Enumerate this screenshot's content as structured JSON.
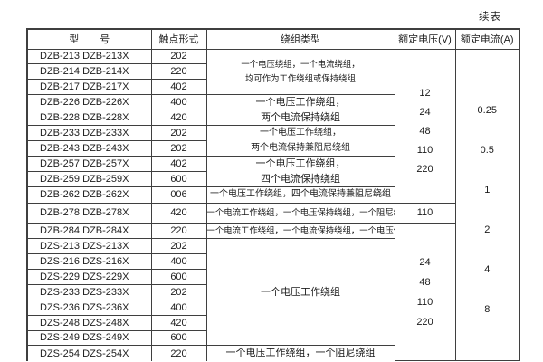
{
  "page": {
    "continued_label": "续表"
  },
  "table": {
    "headers": {
      "model": "型 号",
      "contact": "触点形式",
      "winding": "绕组类型",
      "voltage": "额定电压(V)",
      "current": "额定电流(A)"
    },
    "rows": [
      {
        "model": "DZB-213",
        "model_x": "DZB-213X",
        "contact": "202"
      },
      {
        "model": "DZB-214",
        "model_x": "DZB-214X",
        "contact": "220"
      },
      {
        "model": "DZB-217",
        "model_x": "DZB-217X",
        "contact": "402"
      },
      {
        "model": "DZB-226",
        "model_x": "DZB-226X",
        "contact": "400"
      },
      {
        "model": "DZB-228",
        "model_x": "DZB-228X",
        "contact": "420"
      },
      {
        "model": "DZB-233",
        "model_x": "DZB-233X",
        "contact": "202"
      },
      {
        "model": "DZB-243",
        "model_x": "DZB-243X",
        "contact": "202"
      },
      {
        "model": "DZB-257",
        "model_x": "DZB-257X",
        "contact": "402"
      },
      {
        "model": "DZB-259",
        "model_x": "DZB-259X",
        "contact": "600"
      },
      {
        "model": "DZB-262",
        "model_x": "DZB-262X",
        "contact": "006"
      },
      {
        "model": "DZB-278",
        "model_x": "DZB-278X",
        "contact": "420"
      },
      {
        "model": "DZB-284",
        "model_x": "DZB-284X",
        "contact": "220"
      },
      {
        "model": "DZS-213",
        "model_x": "DZS-213X",
        "contact": "202"
      },
      {
        "model": "DZS-216",
        "model_x": "DZS-216X",
        "contact": "400"
      },
      {
        "model": "DZS-229",
        "model_x": "DZS-229X",
        "contact": "600"
      },
      {
        "model": "DZS-233",
        "model_x": "DZS-233X",
        "contact": "202"
      },
      {
        "model": "DZS-236",
        "model_x": "DZS-236X",
        "contact": "400"
      },
      {
        "model": "DZS-248",
        "model_x": "DZS-248X",
        "contact": "420"
      },
      {
        "model": "DZS-249",
        "model_x": "DZS-249X",
        "contact": "600"
      },
      {
        "model": "DZS-254",
        "model_x": "DZS-254X",
        "contact": "220"
      }
    ],
    "winding_groups": [
      {
        "start": 0,
        "span": 3,
        "lines": [
          "一个电压绕组，一个电流绕组，",
          "均可作为工作绕组或保持绕组"
        ]
      },
      {
        "start": 3,
        "span": 2,
        "lines": [
          "一个电压工作绕组，",
          "两个电流保持绕组"
        ]
      },
      {
        "start": 5,
        "span": 2,
        "lines": [
          "一个电压工作绕组，",
          "两个电流保持兼阻尼绕组"
        ]
      },
      {
        "start": 7,
        "span": 2,
        "lines": [
          "一个电压工作绕组，",
          "四个电流保持绕组"
        ]
      },
      {
        "start": 9,
        "span": 1,
        "lines": [
          "一个电压工作绕组，四个电流保持兼阻尼绕组"
        ]
      },
      {
        "start": 10,
        "span": 1,
        "lines": [
          "一个电流工作绕组，一个电压保持绕组，一个阻尼绕组"
        ]
      },
      {
        "start": 11,
        "span": 1,
        "lines": [
          "一个电流工作绕组，一个电流保持绕组，一个电压保持绕组"
        ]
      },
      {
        "start": 12,
        "span": 7,
        "lines": [
          "一个电压工作绕组"
        ]
      },
      {
        "start": 19,
        "span": 1,
        "lines": [
          "一个电压工作绕组，一个阻尼绕组"
        ]
      }
    ],
    "voltage_groups": [
      {
        "start": 0,
        "span": 10,
        "values": [
          "12",
          "24",
          "48",
          "110",
          "220"
        ]
      },
      {
        "start": 10,
        "span": 1,
        "values": [
          "110"
        ]
      },
      {
        "start": 11,
        "span": 9,
        "values": [
          "24",
          "48",
          "110",
          "220"
        ]
      }
    ],
    "current_groups": [
      {
        "start": 0,
        "span": 20,
        "values": [
          "0.25",
          "0.5",
          "1",
          "2",
          "4",
          "8"
        ]
      }
    ]
  }
}
